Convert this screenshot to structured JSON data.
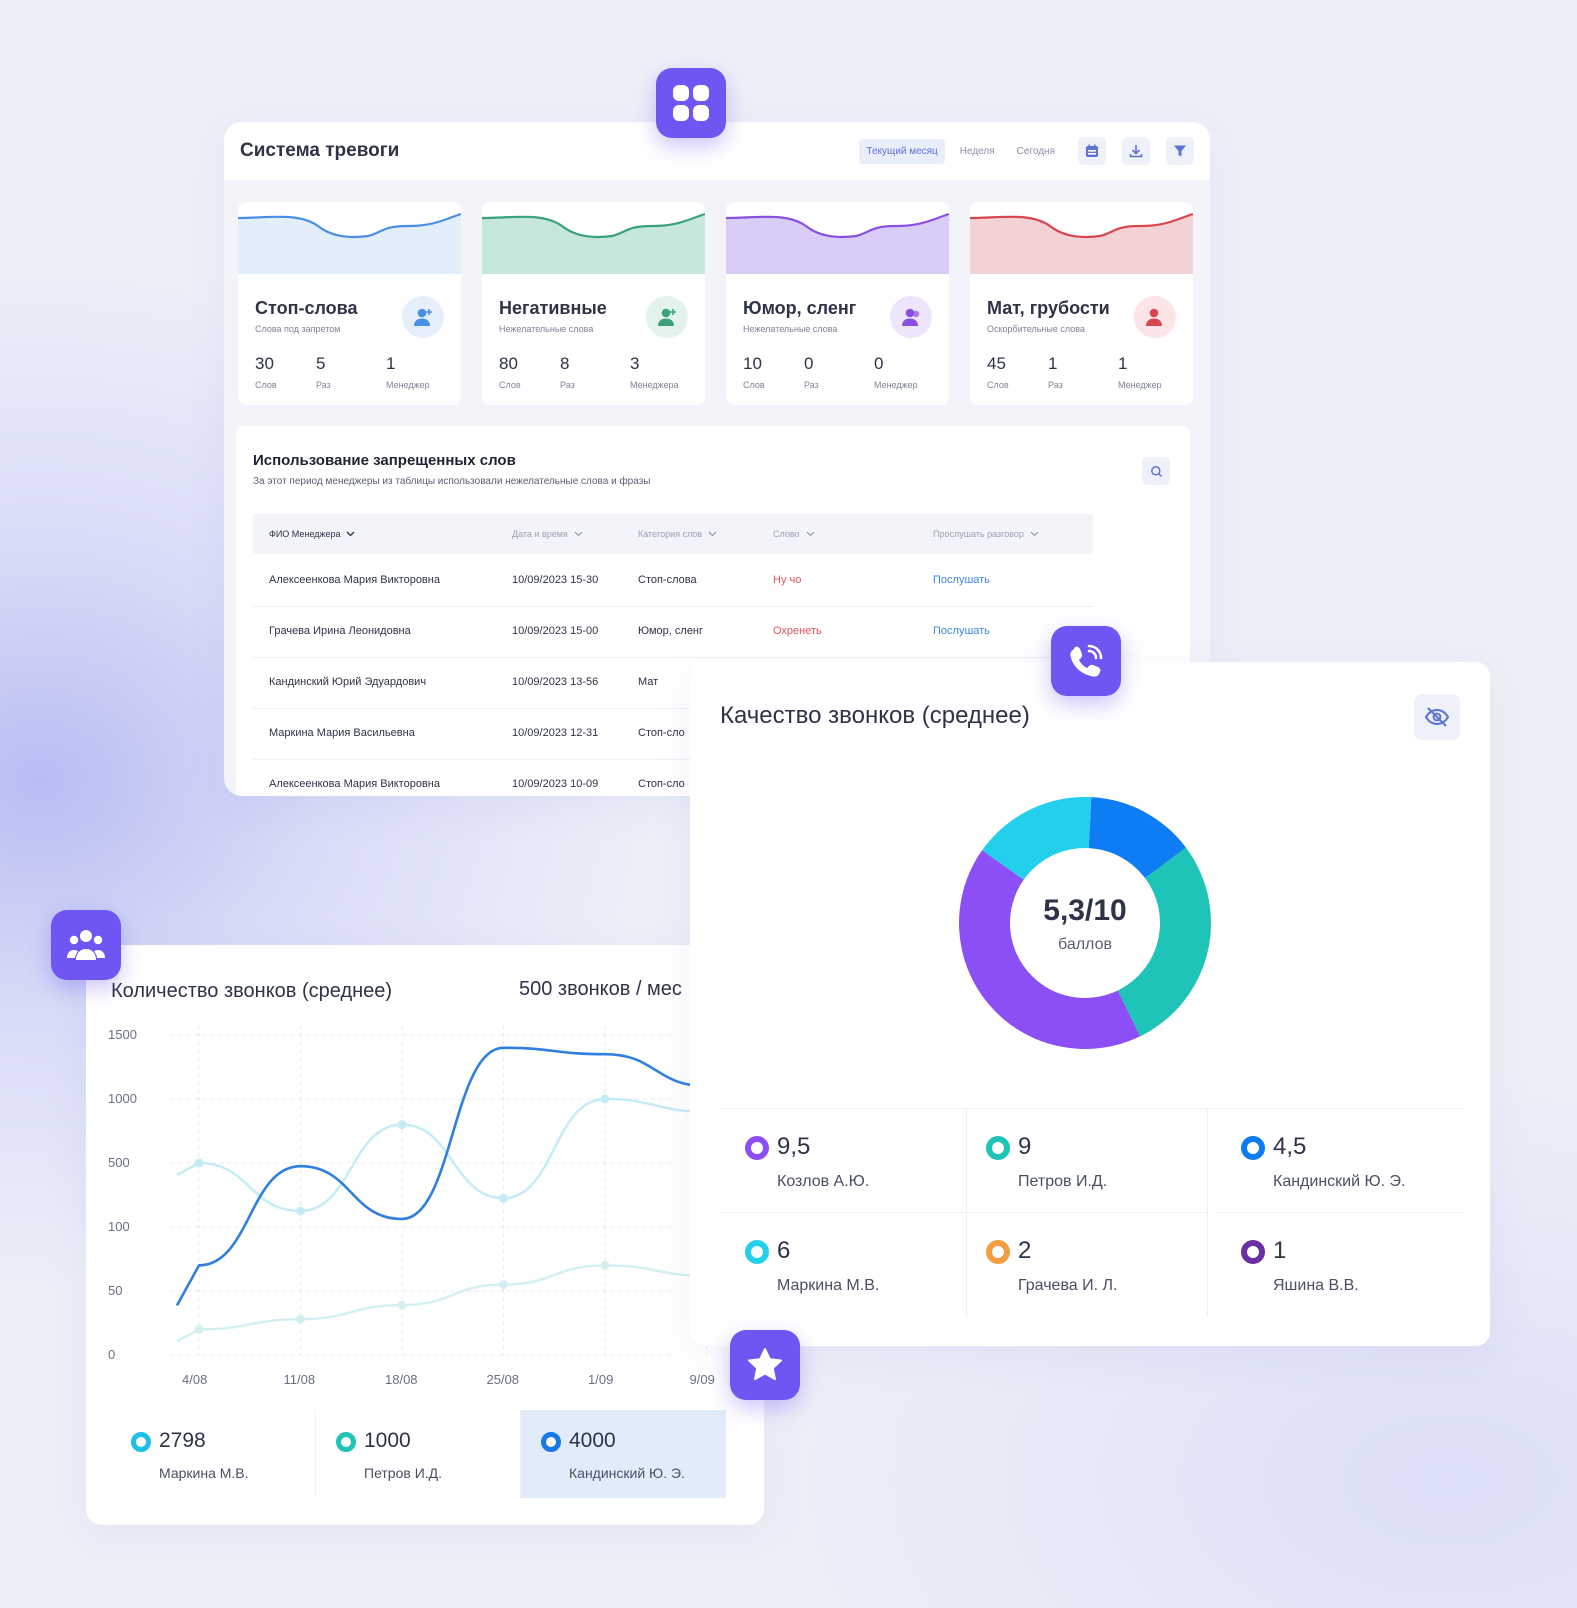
{
  "alarm": {
    "title": "Система тревоги",
    "filters": [
      "Текущий месяц",
      "Неделя",
      "Сегодня"
    ],
    "icons": [
      "calendar-icon",
      "download-icon",
      "filter-icon"
    ],
    "cards": [
      {
        "title": "Стоп-слова",
        "subtitle": "Слова под запретом",
        "color": "#4a8ee8",
        "fill": "#e3eefb",
        "avatar_bg": "#e6eefb",
        "stats": [
          {
            "value": "30",
            "label": "Слов"
          },
          {
            "value": "5",
            "label": "Раз"
          },
          {
            "value": "1",
            "label": "Менеджер"
          }
        ]
      },
      {
        "title": "Негативные",
        "subtitle": "Нежелательные слова",
        "color": "#3aa27a",
        "fill": "#c6e7db",
        "avatar_bg": "#e3f3ec",
        "stats": [
          {
            "value": "80",
            "label": "Слов"
          },
          {
            "value": "8",
            "label": "Раз"
          },
          {
            "value": "3",
            "label": "Менеджера"
          }
        ]
      },
      {
        "title": "Юмор, сленг",
        "subtitle": "Нежелательные слова",
        "color": "#8a4fe0",
        "fill": "#d9cdf8",
        "avatar_bg": "#ece5fb",
        "stats": [
          {
            "value": "10",
            "label": "Слов"
          },
          {
            "value": "0",
            "label": "Раз"
          },
          {
            "value": "0",
            "label": "Менеджер"
          }
        ]
      },
      {
        "title": "Мат, грубости",
        "subtitle": "Оскорбительные слова",
        "color": "#d9454f",
        "fill": "#f3d2d5",
        "avatar_bg": "#fbe5e7",
        "stats": [
          {
            "value": "45",
            "label": "Слов"
          },
          {
            "value": "1",
            "label": "Раз"
          },
          {
            "value": "1",
            "label": "Менеджер"
          }
        ]
      }
    ],
    "table": {
      "title": "Использование запрещенных слов",
      "subtitle": "За этот период менеджеры из таблицы использовали нежелательные слова и фразы",
      "columns": [
        "ФИО Менеджера",
        "Дата и время",
        "Категория слов",
        "Слово",
        "Прослушать разговор"
      ],
      "rows": [
        {
          "name": "Алексеенкова Мария Викторовна",
          "date": "10/09/2023  15-30",
          "category": "Стоп-слова",
          "word": "Ну чо",
          "action": "Послушать"
        },
        {
          "name": "Грачева Ирина Леонидовна",
          "date": "10/09/2023  15-00",
          "category": "Юмор, сленг",
          "word": "Охренеть",
          "action": "Послушать"
        },
        {
          "name": "Кандинский Юрий Эдуардович",
          "date": "10/09/2023  13-56",
          "category": "Мат",
          "word": "",
          "action": ""
        },
        {
          "name": "Маркина Мария Васильевна",
          "date": "10/09/2023  12-31",
          "category": "Стоп-сло",
          "word": "",
          "action": ""
        },
        {
          "name": "Алексеенкова Мария Викторовна",
          "date": "10/09/2023  10-09",
          "category": "Стоп-сло",
          "word": "",
          "action": ""
        }
      ]
    }
  },
  "quality": {
    "title": "Качество звонков (среднее)",
    "score": "5,3/10",
    "score_unit": "баллов",
    "donut": [
      {
        "value": 14,
        "color": "#0e7cf3"
      },
      {
        "value": 28,
        "color": "#1ec4b7"
      },
      {
        "value": 42,
        "color": "#8b4ff5"
      },
      {
        "value": 16,
        "color": "#22d0ec"
      }
    ],
    "people": [
      {
        "value": "9,5",
        "name": "Козлов А.Ю.",
        "color": "#8b4ff5"
      },
      {
        "value": "9",
        "name": "Петров И.Д.",
        "color": "#1ec4b7"
      },
      {
        "value": "4,5",
        "name": "Кандинский Ю. Э.",
        "color": "#0e7cf3"
      },
      {
        "value": "6",
        "name": "Маркина М.В.",
        "color": "#22d0ec"
      },
      {
        "value": "2",
        "name": "Грачева И. Л.",
        "color": "#f39c44"
      },
      {
        "value": "1",
        "name": "Яшина В.В.",
        "color": "#6a2fa0"
      }
    ]
  },
  "calls": {
    "title": "Количество звонков (среднее)",
    "summary": "500 звонков / мес",
    "footer": [
      {
        "value": "2798",
        "name": "Маркина М.В.",
        "color": "#1ec0e8"
      },
      {
        "value": "1000",
        "name": "Петров И.Д.",
        "color": "#1ec4b7"
      },
      {
        "value": "4000",
        "name": "Кандинский Ю. Э.",
        "color": "#1977e8"
      }
    ]
  },
  "chart_data": {
    "type": "line",
    "title": "Количество звонков (среднее)",
    "x": [
      "4/08",
      "11/08",
      "18/08",
      "25/08",
      "1/09",
      "9/09"
    ],
    "y_ticks": [
      "1500",
      "1000",
      "500",
      "100",
      "50",
      "0"
    ],
    "series": [
      {
        "color": "#2f7fe0",
        "points": [
          [
            0,
            70
          ],
          [
            1,
            480
          ],
          [
            2,
            150
          ],
          [
            3,
            1400
          ],
          [
            4,
            1350
          ],
          [
            5,
            1100
          ]
        ]
      },
      {
        "color": "#c4ecf6",
        "points": [
          [
            0,
            500
          ],
          [
            1,
            200
          ],
          [
            2,
            800
          ],
          [
            3,
            280
          ],
          [
            4,
            1000
          ],
          [
            5,
            900
          ]
        ]
      },
      {
        "color": "#d2f0f2",
        "points": [
          [
            0,
            20
          ],
          [
            1,
            28
          ],
          [
            2,
            39
          ],
          [
            3,
            55
          ],
          [
            4,
            70
          ],
          [
            5,
            62
          ]
        ]
      }
    ],
    "grid": true
  }
}
